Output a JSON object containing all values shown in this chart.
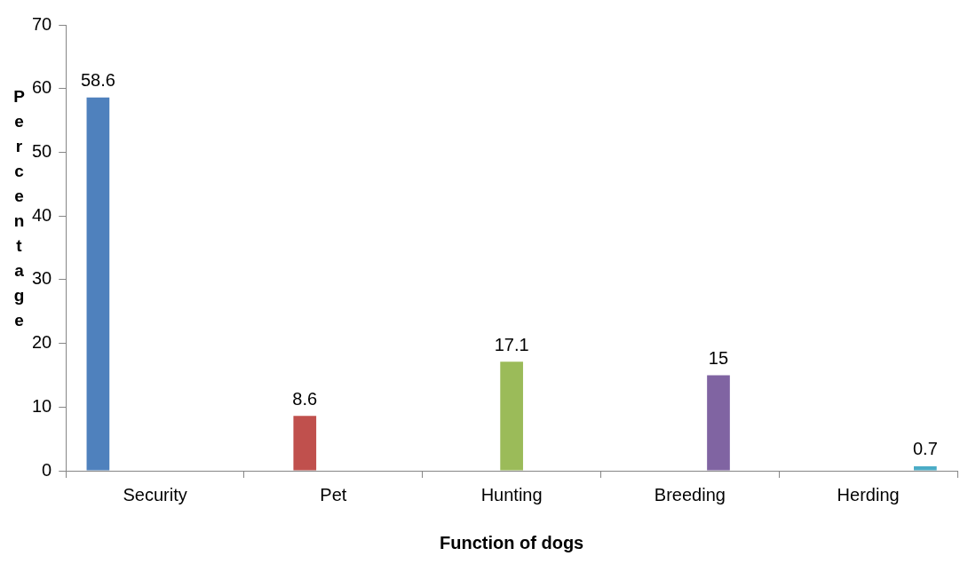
{
  "chart_data": {
    "type": "bar",
    "xlabel": "Function of dogs",
    "ylabel": "Percentage",
    "categories": [
      "Security",
      "Pet",
      "Hunting",
      "Breeding",
      "Herding"
    ],
    "series": [
      {
        "color": "#4f81bd",
        "values": [
          58.6,
          null,
          null,
          null,
          null
        ]
      },
      {
        "color": "#c0504d",
        "values": [
          null,
          8.6,
          null,
          null,
          null
        ]
      },
      {
        "color": "#9bbb59",
        "values": [
          null,
          null,
          17.1,
          null,
          null
        ]
      },
      {
        "color": "#8064a2",
        "values": [
          null,
          null,
          null,
          15,
          null
        ]
      },
      {
        "color": "#4bacc6",
        "values": [
          null,
          null,
          null,
          null,
          0.7
        ]
      }
    ],
    "ylim": [
      0,
      70
    ],
    "yticks": [
      0,
      10,
      20,
      30,
      40,
      50,
      60,
      70
    ],
    "data_labels": true,
    "grid": false,
    "legend": false
  }
}
